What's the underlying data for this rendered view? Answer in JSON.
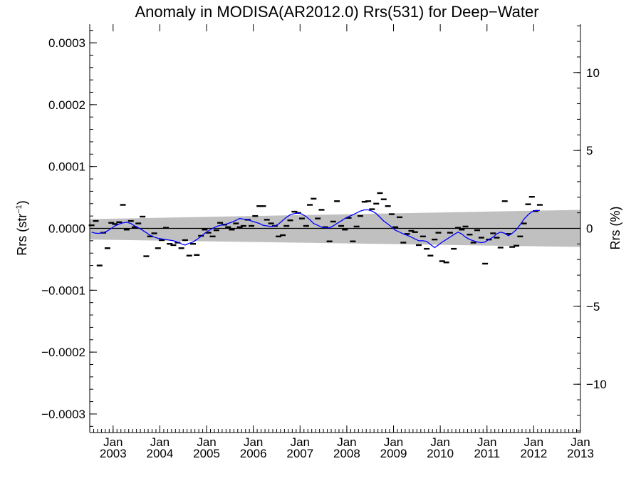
{
  "chart_data": {
    "type": "line",
    "title": "Anomaly in MODISA(AR2012.0) Rrs(531) for Deep−Water",
    "ylabel_left_main": "Rrs (str",
    "ylabel_left_sup": "−1",
    "ylabel_left_close": ")",
    "ylabel_right": "Rrs (%)",
    "xlim": [
      2002.5,
      2013.0
    ],
    "ylim_left": [
      -0.00033,
      0.00033
    ],
    "ylim_right": [
      -13.1,
      13.1
    ],
    "grid": false,
    "left_ticks": [
      {
        "value": 0.0003,
        "label": "0.0003"
      },
      {
        "value": 0.0002,
        "label": "0.0002"
      },
      {
        "value": 0.0001,
        "label": "0.0001"
      },
      {
        "value": 0.0,
        "label": "0.0000"
      },
      {
        "value": -0.0001,
        "label": "−0.0001"
      },
      {
        "value": -0.0002,
        "label": "−0.0002"
      },
      {
        "value": -0.0003,
        "label": "−0.0003"
      }
    ],
    "right_ticks": [
      {
        "value": 10,
        "label": "10"
      },
      {
        "value": 5,
        "label": "5"
      },
      {
        "value": 0,
        "label": "0"
      },
      {
        "value": -5,
        "label": "−5"
      },
      {
        "value": -10,
        "label": "−10"
      }
    ],
    "x_ticks": [
      {
        "value": 2003.0,
        "month": "Jan",
        "year": "2003"
      },
      {
        "value": 2004.0,
        "month": "Jan",
        "year": "2004"
      },
      {
        "value": 2005.0,
        "month": "Jan",
        "year": "2005"
      },
      {
        "value": 2006.0,
        "month": "Jan",
        "year": "2006"
      },
      {
        "value": 2007.0,
        "month": "Jan",
        "year": "2007"
      },
      {
        "value": 2008.0,
        "month": "Jan",
        "year": "2008"
      },
      {
        "value": 2009.0,
        "month": "Jan",
        "year": "2009"
      },
      {
        "value": 2010.0,
        "month": "Jan",
        "year": "2010"
      },
      {
        "value": 2011.0,
        "month": "Jan",
        "year": "2011"
      },
      {
        "value": 2012.0,
        "month": "Jan",
        "year": "2012"
      },
      {
        "value": 2013.0,
        "month": "Jan",
        "year": "2013"
      }
    ],
    "uncertainty_band": {
      "x": [
        2002.5,
        2013.0
      ],
      "upper": [
        1.5e-05,
        3e-05
      ],
      "lower": [
        -1.8e-05,
        -3e-05
      ],
      "color": "#c0c0c0"
    },
    "zero_line_color": "#000000",
    "monthly_anomalies": {
      "name": "",
      "color": "#000000",
      "points": [
        {
          "x": 2002.54,
          "y": 5e-06
        },
        {
          "x": 2002.63,
          "y": 1.2e-05
        },
        {
          "x": 2002.71,
          "y": -6e-05
        },
        {
          "x": 2002.79,
          "y": -7e-06
        },
        {
          "x": 2002.88,
          "y": -3.2e-05
        },
        {
          "x": 2002.96,
          "y": 9e-06
        },
        {
          "x": 2003.04,
          "y": 7e-06
        },
        {
          "x": 2003.13,
          "y": 1e-05
        },
        {
          "x": 2003.21,
          "y": 3.8e-05
        },
        {
          "x": 2003.29,
          "y": -2e-06
        },
        {
          "x": 2003.38,
          "y": 1.2e-05
        },
        {
          "x": 2003.46,
          "y": 2e-06
        },
        {
          "x": 2003.54,
          "y": 8e-06
        },
        {
          "x": 2003.63,
          "y": 1.9e-05
        },
        {
          "x": 2003.71,
          "y": -4.5e-05
        },
        {
          "x": 2003.79,
          "y": -1.3e-05
        },
        {
          "x": 2003.88,
          "y": -8e-06
        },
        {
          "x": 2003.96,
          "y": -3.2e-05
        },
        {
          "x": 2004.04,
          "y": -1.9e-05
        },
        {
          "x": 2004.13,
          "y": 1e-06
        },
        {
          "x": 2004.21,
          "y": -2.5e-05
        },
        {
          "x": 2004.29,
          "y": -2.7e-05
        },
        {
          "x": 2004.38,
          "y": -2.3e-05
        },
        {
          "x": 2004.46,
          "y": -3.2e-05
        },
        {
          "x": 2004.54,
          "y": -1.9e-05
        },
        {
          "x": 2004.63,
          "y": -4.4e-05
        },
        {
          "x": 2004.71,
          "y": -2.5e-05
        },
        {
          "x": 2004.79,
          "y": -4.3e-05
        },
        {
          "x": 2004.88,
          "y": -1.2e-05
        },
        {
          "x": 2004.96,
          "y": -2e-06
        },
        {
          "x": 2005.04,
          "y": -7e-06
        },
        {
          "x": 2005.13,
          "y": -1.3e-05
        },
        {
          "x": 2005.21,
          "y": -3e-06
        },
        {
          "x": 2005.29,
          "y": 9e-06
        },
        {
          "x": 2005.38,
          "y": 6e-06
        },
        {
          "x": 2005.46,
          "y": 2e-06
        },
        {
          "x": 2005.54,
          "y": -2e-06
        },
        {
          "x": 2005.63,
          "y": 8e-06
        },
        {
          "x": 2005.71,
          "y": 2e-06
        },
        {
          "x": 2005.79,
          "y": 4e-06
        },
        {
          "x": 2005.88,
          "y": 1.4e-05
        },
        {
          "x": 2005.96,
          "y": 4e-06
        },
        {
          "x": 2006.04,
          "y": 2e-05
        },
        {
          "x": 2006.13,
          "y": 3.6e-05
        },
        {
          "x": 2006.21,
          "y": 3.6e-05
        },
        {
          "x": 2006.29,
          "y": 1.4e-05
        },
        {
          "x": 2006.38,
          "y": 8e-06
        },
        {
          "x": 2006.46,
          "y": 4e-06
        },
        {
          "x": 2006.54,
          "y": -1.3e-05
        },
        {
          "x": 2006.63,
          "y": -1.1e-05
        },
        {
          "x": 2006.71,
          "y": 4e-06
        },
        {
          "x": 2006.79,
          "y": 1.3e-05
        },
        {
          "x": 2006.88,
          "y": 2.7e-05
        },
        {
          "x": 2006.96,
          "y": 2.5e-05
        },
        {
          "x": 2007.04,
          "y": 1.6e-05
        },
        {
          "x": 2007.13,
          "y": 4e-06
        },
        {
          "x": 2007.21,
          "y": 3.8e-05
        },
        {
          "x": 2007.29,
          "y": 4.8e-05
        },
        {
          "x": 2007.38,
          "y": 1.6e-05
        },
        {
          "x": 2007.46,
          "y": 3e-05
        },
        {
          "x": 2007.54,
          "y": 2e-06
        },
        {
          "x": 2007.63,
          "y": -2.1e-05
        },
        {
          "x": 2007.71,
          "y": 1.1e-05
        },
        {
          "x": 2007.79,
          "y": 4.4e-05
        },
        {
          "x": 2007.88,
          "y": 4e-06
        },
        {
          "x": 2007.96,
          "y": -2e-06
        },
        {
          "x": 2008.04,
          "y": 1.7e-05
        },
        {
          "x": 2008.13,
          "y": -2.1e-05
        },
        {
          "x": 2008.21,
          "y": 3e-06
        },
        {
          "x": 2008.29,
          "y": 2e-05
        },
        {
          "x": 2008.38,
          "y": 4.3e-05
        },
        {
          "x": 2008.46,
          "y": 4.4e-05
        },
        {
          "x": 2008.54,
          "y": 3.1e-05
        },
        {
          "x": 2008.63,
          "y": 4e-05
        },
        {
          "x": 2008.71,
          "y": 5.7e-05
        },
        {
          "x": 2008.79,
          "y": 4.7e-05
        },
        {
          "x": 2008.88,
          "y": 3.6e-05
        },
        {
          "x": 2008.96,
          "y": 2.3e-05
        },
        {
          "x": 2009.04,
          "y": 2e-06
        },
        {
          "x": 2009.13,
          "y": 1.8e-05
        },
        {
          "x": 2009.21,
          "y": -2.3e-05
        },
        {
          "x": 2009.29,
          "y": -9e-06
        },
        {
          "x": 2009.38,
          "y": -4e-06
        },
        {
          "x": 2009.46,
          "y": -6e-06
        },
        {
          "x": 2009.54,
          "y": -2.7e-05
        },
        {
          "x": 2009.63,
          "y": -1.3e-05
        },
        {
          "x": 2009.71,
          "y": -3.3e-05
        },
        {
          "x": 2009.79,
          "y": -4.4e-05
        },
        {
          "x": 2009.88,
          "y": -1.8e-05
        },
        {
          "x": 2009.96,
          "y": -7e-06
        },
        {
          "x": 2010.04,
          "y": -5.3e-05
        },
        {
          "x": 2010.13,
          "y": -5.5e-05
        },
        {
          "x": 2010.21,
          "y": -7e-06
        },
        {
          "x": 2010.29,
          "y": -3.3e-05
        },
        {
          "x": 2010.38,
          "y": 1e-06
        },
        {
          "x": 2010.46,
          "y": -2e-06
        },
        {
          "x": 2010.54,
          "y": 3e-06
        },
        {
          "x": 2010.63,
          "y": -1e-05
        },
        {
          "x": 2010.71,
          "y": -2.3e-05
        },
        {
          "x": 2010.79,
          "y": -3e-06
        },
        {
          "x": 2010.88,
          "y": -1.5e-05
        },
        {
          "x": 2010.96,
          "y": -5.7e-05
        },
        {
          "x": 2011.04,
          "y": -1.8e-05
        },
        {
          "x": 2011.13,
          "y": -8e-06
        },
        {
          "x": 2011.21,
          "y": -1.5e-05
        },
        {
          "x": 2011.29,
          "y": -3.1e-05
        },
        {
          "x": 2011.38,
          "y": 4.4e-05
        },
        {
          "x": 2011.46,
          "y": -9e-06
        },
        {
          "x": 2011.54,
          "y": -3e-05
        },
        {
          "x": 2011.63,
          "y": -2.8e-05
        },
        {
          "x": 2011.71,
          "y": -1.3e-05
        },
        {
          "x": 2011.79,
          "y": 8e-06
        },
        {
          "x": 2011.88,
          "y": 3.9e-05
        },
        {
          "x": 2011.96,
          "y": 5.1e-05
        },
        {
          "x": 2012.04,
          "y": 2.8e-05
        },
        {
          "x": 2012.13,
          "y": 3.8e-05
        }
      ]
    },
    "running_mean": {
      "name": "",
      "color": "#0000ff",
      "x": [
        2002.54,
        2002.63,
        2002.71,
        2002.79,
        2002.88,
        2002.96,
        2003.04,
        2003.13,
        2003.21,
        2003.29,
        2003.38,
        2003.46,
        2003.54,
        2003.63,
        2003.71,
        2003.79,
        2003.88,
        2003.96,
        2004.04,
        2004.13,
        2004.21,
        2004.29,
        2004.38,
        2004.46,
        2004.54,
        2004.63,
        2004.71,
        2004.79,
        2004.88,
        2004.96,
        2005.04,
        2005.13,
        2005.21,
        2005.29,
        2005.38,
        2005.46,
        2005.54,
        2005.63,
        2005.71,
        2005.79,
        2005.88,
        2005.96,
        2006.04,
        2006.13,
        2006.21,
        2006.29,
        2006.38,
        2006.46,
        2006.54,
        2006.63,
        2006.71,
        2006.79,
        2006.88,
        2006.96,
        2007.04,
        2007.13,
        2007.21,
        2007.29,
        2007.38,
        2007.46,
        2007.54,
        2007.63,
        2007.71,
        2007.79,
        2007.88,
        2007.96,
        2008.04,
        2008.13,
        2008.21,
        2008.29,
        2008.38,
        2008.46,
        2008.54,
        2008.63,
        2008.71,
        2008.79,
        2008.88,
        2008.96,
        2009.04,
        2009.13,
        2009.21,
        2009.29,
        2009.38,
        2009.46,
        2009.54,
        2009.63,
        2009.71,
        2009.79,
        2009.88,
        2009.96,
        2010.04,
        2010.13,
        2010.21,
        2010.29,
        2010.38,
        2010.46,
        2010.54,
        2010.63,
        2010.71,
        2010.79,
        2010.88,
        2010.96,
        2011.04,
        2011.13,
        2011.21,
        2011.29,
        2011.38,
        2011.46,
        2011.54,
        2011.63,
        2011.71,
        2011.79,
        2011.88,
        2011.96,
        2012.04,
        2012.13
      ],
      "y": [
        -6e-06,
        -8e-06,
        -8e-06,
        -7e-06,
        -4e-06,
        0.0,
        4e-06,
        7e-06,
        9e-06,
        1e-05,
        8e-06,
        4e-06,
        1e-06,
        -3e-06,
        -7e-06,
        -1.1e-05,
        -1.4e-05,
        -1.6e-05,
        -1.7e-05,
        -1.8e-05,
        -1.9e-05,
        -2e-05,
        -2.2e-05,
        -2.5e-05,
        -2.7e-05,
        -2.4e-05,
        -2.2e-05,
        -1.8e-05,
        -1.3e-05,
        -8e-06,
        -4e-06,
        0.0,
        3e-06,
        5e-06,
        6e-06,
        8e-06,
        1e-05,
        1.3e-05,
        1.6e-05,
        1.5e-05,
        1.4e-05,
        1.2e-05,
        1e-05,
        8e-06,
        5e-06,
        4e-06,
        3e-06,
        4e-06,
        7e-06,
        1.3e-05,
        1.8e-05,
        2.2e-05,
        2.4e-05,
        2.5e-05,
        2.3e-05,
        1.9e-05,
        1.4e-05,
        8e-06,
        5e-06,
        2e-06,
        1e-06,
        1e-06,
        4e-06,
        8e-06,
        1.2e-05,
        1.6e-05,
        1.9e-05,
        2.2e-05,
        2.5e-05,
        2.8e-05,
        3e-05,
        3e-05,
        2.8e-05,
        2.4e-05,
        1.8e-05,
        1.2e-05,
        7e-06,
        2e-06,
        -3e-06,
        -6e-06,
        -9e-06,
        -1.1e-05,
        -1.4e-05,
        -1.7e-05,
        -2e-05,
        -2e-05,
        -2.1e-05,
        -2.6e-05,
        -3.1e-05,
        -2.7e-05,
        -2.2e-05,
        -1.8e-05,
        -1.4e-05,
        -1e-05,
        -6e-06,
        -9e-06,
        -1.4e-05,
        -1.8e-05,
        -2e-05,
        -2.2e-05,
        -2.3e-05,
        -2.2e-05,
        -1.8e-05,
        -1.4e-05,
        -9e-06,
        -6e-06,
        -8e-06,
        -1.2e-05,
        -8e-06,
        -2e-06,
        6e-06,
        1.5e-05,
        2.2e-05,
        2.7e-05,
        2.9e-05,
        2.9e-05
      ]
    }
  }
}
